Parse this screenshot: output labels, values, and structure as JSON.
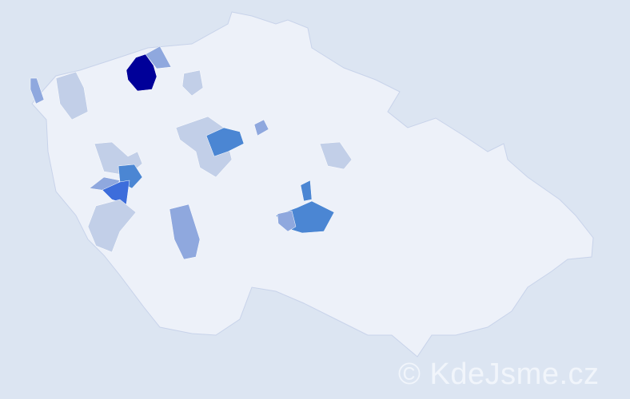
{
  "map": {
    "country_fill": "#edf1f9",
    "border_color": "#c8d3ea",
    "scale_colors": [
      "#c2cfe8",
      "#8fa8de",
      "#4b86d3",
      "#3d6ddb",
      "#000099"
    ],
    "regions": [
      {
        "level": 4,
        "color": "#000099"
      },
      {
        "level": 1,
        "color": "#8fa8de"
      },
      {
        "level": 0,
        "color": "#c2cfe8"
      },
      {
        "level": 2,
        "color": "#4b86d3"
      },
      {
        "level": 3,
        "color": "#3d6ddb"
      }
    ]
  },
  "watermark": "© KdeJsme.cz"
}
